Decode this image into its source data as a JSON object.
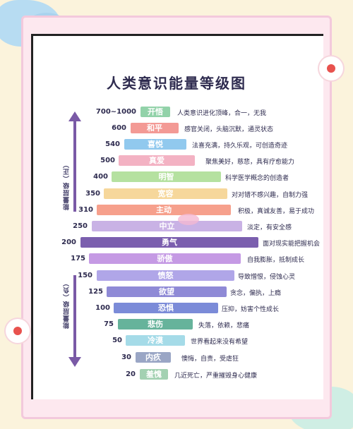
{
  "title": "人类意识能量等级图",
  "side_labels": {
    "positive": "能量层级（正）",
    "negative": "能量层级（负）"
  },
  "levels": [
    {
      "value": "700~1000",
      "name": "开悟",
      "desc": "人类意识进化顶峰，合一，无我",
      "color": "#92d2a9"
    },
    {
      "value": "600",
      "name": "和平",
      "desc": "感官关闭，头脑沉默，通灵状态",
      "color": "#f39a95"
    },
    {
      "value": "540",
      "name": "喜悦",
      "desc": "法喜充满，持久乐观，可创造奇迹",
      "color": "#91c9ee"
    },
    {
      "value": "500",
      "name": "真爱",
      "desc": "聚焦美好，慈悲，具有疗愈能力",
      "color": "#f3b2c3"
    },
    {
      "value": "400",
      "name": "明智",
      "desc": "科学医学概念的创造者",
      "color": "#b5e1a0"
    },
    {
      "value": "350",
      "name": "宽容",
      "desc": "对对错不感兴趣，自制力强",
      "color": "#f6d79b"
    },
    {
      "value": "310",
      "name": "主动",
      "desc": "积极，真诚友善，易于成功",
      "color": "#f6a08c"
    },
    {
      "value": "250",
      "name": "中立",
      "desc": "淡定，有安全感",
      "color": "#c9b2e5"
    },
    {
      "value": "200",
      "name": "勇气",
      "desc": "面对现实能把握机会",
      "color": "#7b5fae"
    },
    {
      "value": "175",
      "name": "骄傲",
      "desc": "自我膨胀，抵制成长",
      "color": "#c59ae4"
    },
    {
      "value": "150",
      "name": "愤怒",
      "desc": "导致憎恨，侵蚀心灵",
      "color": "#b0a6e8"
    },
    {
      "value": "125",
      "name": "欲望",
      "desc": "贪念，偏执，上瘾",
      "color": "#8f8ad6"
    },
    {
      "value": "100",
      "name": "恐惧",
      "desc": "压抑，妨害个性成长",
      "color": "#7b8bd8"
    },
    {
      "value": "75",
      "name": "悲伤",
      "desc": "失落，依赖，悲痛",
      "color": "#66b39b"
    },
    {
      "value": "50",
      "name": "冷漠",
      "desc": "世界看起来没有希望",
      "color": "#a5dbe8"
    },
    {
      "value": "30",
      "name": "内疚",
      "desc": "懊悔，自责，受虐狂",
      "color": "#9aa6c5"
    },
    {
      "value": "20",
      "name": "羞愧",
      "desc": "几近死亡，严重摧毁身心健康",
      "color": "#a3d1b2"
    }
  ]
}
